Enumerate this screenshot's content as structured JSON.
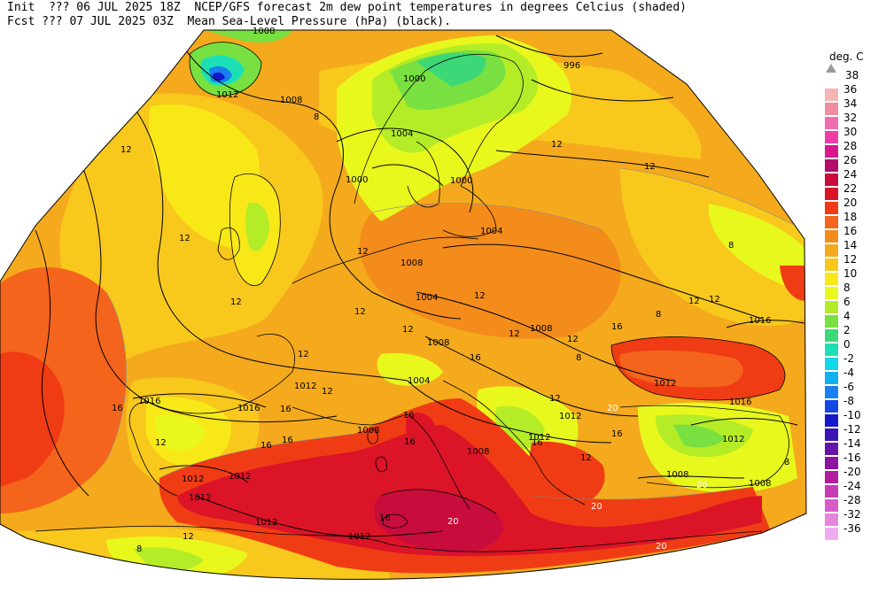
{
  "header": {
    "line1": "Init  ??? 06 JUL 2025 18Z  NCEP/GFS forecast 2m dew point temperatures in degrees Celcius (shaded)",
    "line2": "Fcst ??? 07 JUL 2025 03Z  Mean Sea-Level Pressure (hPa) (black)."
  },
  "legend": {
    "title": "deg. C",
    "top_label": "38",
    "levels": [
      {
        "label": "36",
        "color": "#f7b4b4"
      },
      {
        "label": "34",
        "color": "#f08ca0"
      },
      {
        "label": "32",
        "color": "#f06cb0"
      },
      {
        "label": "30",
        "color": "#ee3ca8"
      },
      {
        "label": "28",
        "color": "#d8188c"
      },
      {
        "label": "26",
        "color": "#b40c6c"
      },
      {
        "label": "24",
        "color": "#c80c3c"
      },
      {
        "label": "22",
        "color": "#dc1428"
      },
      {
        "label": "20",
        "color": "#f03c14"
      },
      {
        "label": "18",
        "color": "#f4641c"
      },
      {
        "label": "16",
        "color": "#f48c1c"
      },
      {
        "label": "14",
        "color": "#f4aa1c"
      },
      {
        "label": "12",
        "color": "#f8c81c"
      },
      {
        "label": "10",
        "color": "#f8e818"
      },
      {
        "label": "8",
        "color": "#e8f81c"
      },
      {
        "label": "6",
        "color": "#b4ec28"
      },
      {
        "label": "4",
        "color": "#78e040"
      },
      {
        "label": "2",
        "color": "#3cd878"
      },
      {
        "label": "0",
        "color": "#1ce0b4"
      },
      {
        "label": "-2",
        "color": "#10d8e8"
      },
      {
        "label": "-4",
        "color": "#10b0f0"
      },
      {
        "label": "-6",
        "color": "#1880f0"
      },
      {
        "label": "-8",
        "color": "#1448e0"
      },
      {
        "label": "-10",
        "color": "#1418c8"
      },
      {
        "label": "-12",
        "color": "#3c14b4"
      },
      {
        "label": "-14",
        "color": "#6414a8"
      },
      {
        "label": "-16",
        "color": "#8c14a0"
      },
      {
        "label": "-20",
        "color": "#b41ca0"
      },
      {
        "label": "-24",
        "color": "#c83cb4"
      },
      {
        "label": "-28",
        "color": "#d85cc8"
      },
      {
        "label": "-32",
        "color": "#e484dc"
      },
      {
        "label": "-36",
        "color": "#f0acf0"
      }
    ]
  },
  "pressure_labels": [
    "1008",
    "1012",
    "1008",
    "1000",
    "996",
    "1004",
    "1000",
    "1000",
    "1004",
    "1008",
    "1004",
    "1008",
    "1008",
    "1016",
    "1004",
    "1012",
    "1016",
    "1016",
    "1008",
    "1008",
    "1012",
    "1012",
    "1012",
    "1012",
    "1012",
    "1012",
    "1012",
    "1012",
    "1016",
    "1012",
    "1008",
    "1008"
  ],
  "dewpoint_labels": [
    "12",
    "12",
    "12",
    "8",
    "12",
    "12",
    "12",
    "12",
    "12",
    "12",
    "16",
    "12",
    "16",
    "16",
    "12",
    "16",
    "12",
    "12",
    "16",
    "8",
    "12",
    "16",
    "16",
    "8",
    "12",
    "12",
    "16",
    "12",
    "20",
    "16",
    "20",
    "20",
    "20",
    "20",
    "16",
    "16",
    "8",
    "12",
    "8",
    "8",
    "12"
  ]
}
